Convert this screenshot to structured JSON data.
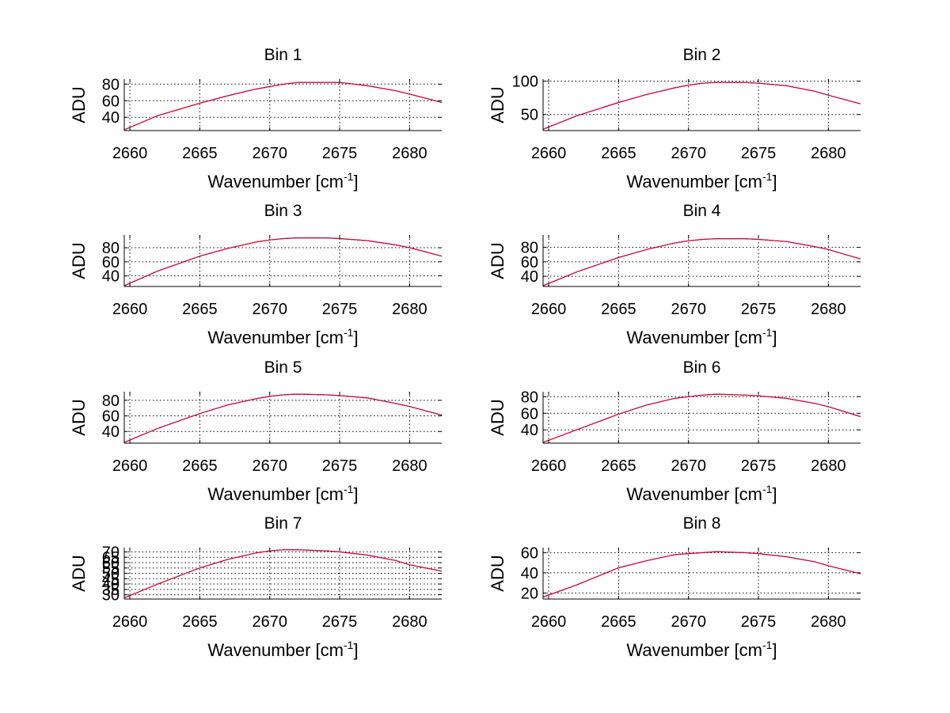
{
  "chart_data": [
    {
      "type": "line",
      "title": "Bin 1",
      "xlabel": "Wavenumber [cm",
      "xlabel_sup": "-1",
      "xlabel_end": "]",
      "ylabel": "ADU",
      "xlim": [
        2659.6,
        2682.3
      ],
      "ylim": [
        24,
        86
      ],
      "xticks": [
        2660,
        2665,
        2670,
        2675,
        2680
      ],
      "yticks": [
        40,
        60,
        80
      ],
      "xtick_labels": [
        "2660",
        "2665",
        "2670",
        "2675",
        "2680"
      ],
      "ytick_labels": [
        "40",
        "60",
        "80"
      ],
      "grid": true,
      "series": [
        {
          "name": "blue",
          "color": "#0000ff",
          "x": [
            2659.6,
            2662,
            2665,
            2667,
            2669,
            2670,
            2671,
            2672,
            2674,
            2675,
            2677,
            2679,
            2680,
            2682.3
          ],
          "y": [
            25,
            42,
            57,
            66,
            74,
            77,
            80,
            82,
            82,
            82,
            78,
            72,
            68,
            58
          ]
        },
        {
          "name": "red",
          "color": "#ff0000",
          "x": [
            2659.6,
            2662,
            2665,
            2667,
            2669,
            2670,
            2671,
            2672,
            2674,
            2675,
            2677,
            2679,
            2680,
            2682.3
          ],
          "y": [
            25,
            42,
            57,
            66,
            74,
            77,
            80,
            82,
            82,
            82,
            78,
            72,
            68,
            58
          ]
        }
      ]
    },
    {
      "type": "line",
      "title": "Bin 2",
      "xlabel": "Wavenumber [cm",
      "xlabel_sup": "-1",
      "xlabel_end": "]",
      "ylabel": "ADU",
      "xlim": [
        2659.6,
        2682.3
      ],
      "ylim": [
        26,
        103
      ],
      "xticks": [
        2660,
        2665,
        2670,
        2675,
        2680
      ],
      "yticks": [
        50,
        100
      ],
      "xtick_labels": [
        "2660",
        "2665",
        "2670",
        "2675",
        "2680"
      ],
      "ytick_labels": [
        "50",
        "100"
      ],
      "grid": true,
      "series": [
        {
          "name": "blue",
          "color": "#0000ff",
          "x": [
            2659.6,
            2662,
            2665,
            2667,
            2669,
            2670,
            2671,
            2672,
            2674,
            2675,
            2677,
            2679,
            2680,
            2682.3
          ],
          "y": [
            28,
            48,
            68,
            80,
            90,
            94,
            97,
            98,
            98,
            97,
            93,
            85,
            79,
            66
          ]
        },
        {
          "name": "red",
          "color": "#ff0000",
          "x": [
            2659.6,
            2662,
            2665,
            2667,
            2669,
            2670,
            2671,
            2672,
            2674,
            2675,
            2677,
            2679,
            2680,
            2682.3
          ],
          "y": [
            28,
            48,
            68,
            80,
            90,
            94,
            97,
            98,
            98,
            97,
            93,
            85,
            79,
            66
          ]
        }
      ]
    },
    {
      "type": "line",
      "title": "Bin 3",
      "xlabel": "Wavenumber [cm",
      "xlabel_sup": "-1",
      "xlabel_end": "]",
      "ylabel": "ADU",
      "xlim": [
        2659.6,
        2682.3
      ],
      "ylim": [
        25,
        98
      ],
      "xticks": [
        2660,
        2665,
        2670,
        2675,
        2680
      ],
      "yticks": [
        40,
        60,
        80
      ],
      "xtick_labels": [
        "2660",
        "2665",
        "2670",
        "2675",
        "2680"
      ],
      "ytick_labels": [
        "40",
        "60",
        "80"
      ],
      "grid": true,
      "series": [
        {
          "name": "blue",
          "color": "#0000ff",
          "x": [
            2659.6,
            2662,
            2665,
            2667,
            2669,
            2670,
            2671,
            2672,
            2674,
            2675,
            2677,
            2679,
            2680,
            2682.3
          ],
          "y": [
            26,
            47,
            68,
            79,
            88,
            91,
            93,
            94,
            94,
            93,
            90,
            84,
            80,
            68
          ]
        },
        {
          "name": "red",
          "color": "#ff0000",
          "x": [
            2659.6,
            2662,
            2665,
            2667,
            2669,
            2670,
            2671,
            2672,
            2674,
            2675,
            2677,
            2679,
            2680,
            2682.3
          ],
          "y": [
            26,
            47,
            68,
            79,
            88,
            91,
            93,
            94,
            94,
            93,
            90,
            84,
            80,
            68
          ]
        }
      ]
    },
    {
      "type": "line",
      "title": "Bin 4",
      "xlabel": "Wavenumber [cm",
      "xlabel_sup": "-1",
      "xlabel_end": "]",
      "ylabel": "ADU",
      "xlim": [
        2659.6,
        2682.3
      ],
      "ylim": [
        26,
        97
      ],
      "xticks": [
        2660,
        2665,
        2670,
        2675,
        2680
      ],
      "yticks": [
        40,
        60,
        80
      ],
      "xtick_labels": [
        "2660",
        "2665",
        "2670",
        "2675",
        "2680"
      ],
      "ytick_labels": [
        "40",
        "60",
        "80"
      ],
      "grid": true,
      "series": [
        {
          "name": "blue",
          "color": "#0000ff",
          "x": [
            2659.6,
            2662,
            2665,
            2667,
            2669,
            2670,
            2671,
            2672,
            2674,
            2675,
            2677,
            2679,
            2680,
            2682.3
          ],
          "y": [
            27,
            46,
            66,
            77,
            86,
            89,
            91,
            92,
            92,
            91,
            88,
            81,
            77,
            64
          ]
        },
        {
          "name": "red",
          "color": "#ff0000",
          "x": [
            2659.6,
            2662,
            2665,
            2667,
            2669,
            2670,
            2671,
            2672,
            2674,
            2675,
            2677,
            2679,
            2680,
            2682.3
          ],
          "y": [
            27,
            46,
            66,
            77,
            86,
            89,
            91,
            92,
            92,
            91,
            88,
            81,
            77,
            64
          ]
        }
      ]
    },
    {
      "type": "line",
      "title": "Bin 5",
      "xlabel": "Wavenumber [cm",
      "xlabel_sup": "-1",
      "xlabel_end": "]",
      "ylabel": "ADU",
      "xlim": [
        2659.6,
        2682.3
      ],
      "ylim": [
        25,
        91
      ],
      "xticks": [
        2660,
        2665,
        2670,
        2675,
        2680
      ],
      "yticks": [
        40,
        60,
        80
      ],
      "xtick_labels": [
        "2660",
        "2665",
        "2670",
        "2675",
        "2680"
      ],
      "ytick_labels": [
        "40",
        "60",
        "80"
      ],
      "grid": true,
      "series": [
        {
          "name": "blue",
          "color": "#0000ff",
          "x": [
            2659.6,
            2662,
            2665,
            2667,
            2669,
            2670,
            2671,
            2672,
            2674,
            2675,
            2677,
            2679,
            2680,
            2682.3
          ],
          "y": [
            26,
            44,
            63,
            74,
            82,
            85,
            87,
            88,
            87,
            86,
            83,
            76,
            72,
            61
          ]
        },
        {
          "name": "red",
          "color": "#ff0000",
          "x": [
            2659.6,
            2662,
            2665,
            2667,
            2669,
            2670,
            2671,
            2672,
            2674,
            2675,
            2677,
            2679,
            2680,
            2682.3
          ],
          "y": [
            26,
            44,
            63,
            74,
            82,
            85,
            87,
            88,
            87,
            86,
            83,
            76,
            72,
            61
          ]
        }
      ]
    },
    {
      "type": "line",
      "title": "Bin 6",
      "xlabel": "Wavenumber [cm",
      "xlabel_sup": "-1",
      "xlabel_end": "]",
      "ylabel": "ADU",
      "xlim": [
        2659.6,
        2682.3
      ],
      "ylim": [
        24,
        86
      ],
      "xticks": [
        2660,
        2665,
        2670,
        2675,
        2680
      ],
      "yticks": [
        40,
        60,
        80
      ],
      "xtick_labels": [
        "2660",
        "2665",
        "2670",
        "2675",
        "2680"
      ],
      "ytick_labels": [
        "40",
        "60",
        "80"
      ],
      "grid": true,
      "series": [
        {
          "name": "blue",
          "color": "#0000ff",
          "x": [
            2659.6,
            2662,
            2665,
            2667,
            2669,
            2670,
            2671,
            2672,
            2674,
            2675,
            2677,
            2679,
            2680,
            2682.3
          ],
          "y": [
            25,
            40,
            59,
            70,
            78,
            80,
            82,
            83,
            82,
            81,
            78,
            72,
            68,
            56
          ]
        },
        {
          "name": "red",
          "color": "#ff0000",
          "x": [
            2659.6,
            2662,
            2665,
            2667,
            2669,
            2670,
            2671,
            2672,
            2674,
            2675,
            2677,
            2679,
            2680,
            2682.3
          ],
          "y": [
            25,
            40,
            59,
            70,
            78,
            80,
            82,
            83,
            82,
            81,
            78,
            72,
            68,
            56
          ]
        }
      ]
    },
    {
      "type": "line",
      "title": "Bin 7",
      "xlabel": "Wavenumber [cm",
      "xlabel_sup": "-1",
      "xlabel_end": "]",
      "ylabel": "ADU",
      "xlim": [
        2659.6,
        2682.3
      ],
      "ylim": [
        26,
        74
      ],
      "xticks": [
        2660,
        2665,
        2670,
        2675,
        2680
      ],
      "yticks": [
        30,
        35,
        40,
        45,
        50,
        55,
        60,
        65,
        70
      ],
      "xtick_labels": [
        "2660",
        "2665",
        "2670",
        "2675",
        "2680"
      ],
      "ytick_labels": [
        "30",
        "35",
        "40",
        "45",
        "50",
        "55",
        "60",
        "65",
        "70"
      ],
      "grid": true,
      "series": [
        {
          "name": "blue",
          "color": "#0000ff",
          "x": [
            2659.6,
            2662,
            2665,
            2667,
            2669,
            2670,
            2671,
            2672,
            2674,
            2675,
            2677,
            2679,
            2680,
            2682.3
          ],
          "y": [
            27,
            40,
            55,
            63,
            69,
            71,
            72,
            72,
            71,
            70,
            67,
            62,
            58,
            52
          ]
        },
        {
          "name": "red",
          "color": "#ff0000",
          "x": [
            2659.6,
            2662,
            2665,
            2667,
            2669,
            2670,
            2671,
            2672,
            2674,
            2675,
            2677,
            2679,
            2680,
            2682.3
          ],
          "y": [
            27,
            40,
            55,
            63,
            69,
            71,
            72,
            72,
            71,
            70,
            67,
            62,
            58,
            52
          ]
        }
      ]
    },
    {
      "type": "line",
      "title": "Bin 8",
      "xlabel": "Wavenumber [cm",
      "xlabel_sup": "-1",
      "xlabel_end": "]",
      "ylabel": "ADU",
      "xlim": [
        2659.6,
        2682.3
      ],
      "ylim": [
        14,
        65
      ],
      "xticks": [
        2660,
        2665,
        2670,
        2675,
        2680
      ],
      "yticks": [
        20,
        40,
        60
      ],
      "xtick_labels": [
        "2660",
        "2665",
        "2670",
        "2675",
        "2680"
      ],
      "ytick_labels": [
        "20",
        "40",
        "60"
      ],
      "grid": true,
      "series": [
        {
          "name": "blue",
          "color": "#0000ff",
          "x": [
            2659.6,
            2662,
            2665,
            2667,
            2669,
            2670,
            2671,
            2672,
            2674,
            2675,
            2677,
            2679,
            2680,
            2682.3
          ],
          "y": [
            16,
            28,
            45,
            52,
            58,
            59,
            60,
            61,
            60,
            59,
            56,
            51,
            47,
            39
          ]
        },
        {
          "name": "red",
          "color": "#ff0000",
          "x": [
            2659.6,
            2662,
            2665,
            2667,
            2669,
            2670,
            2671,
            2672,
            2674,
            2675,
            2677,
            2679,
            2680,
            2682.3
          ],
          "y": [
            16,
            28,
            45,
            52,
            58,
            59,
            60,
            61,
            60,
            59,
            56,
            51,
            47,
            39
          ]
        }
      ]
    }
  ]
}
